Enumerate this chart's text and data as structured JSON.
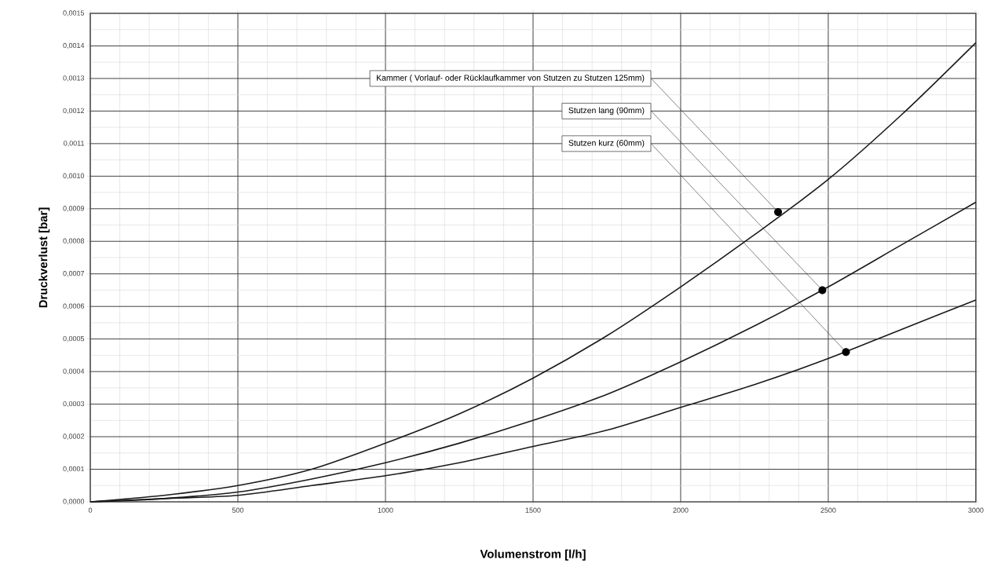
{
  "chart_data": {
    "type": "line",
    "xlabel": "Volumenstrom [l/h]",
    "ylabel": "Druckverlust [bar]",
    "x": [
      0,
      250,
      500,
      750,
      1000,
      1250,
      1500,
      1750,
      2000,
      2250,
      2500,
      2750,
      3000
    ],
    "series": [
      {
        "color": "#1a1a1a",
        "values": [
          0,
          2e-05,
          5e-05,
          0.0001,
          0.00018,
          0.00027,
          0.00038,
          0.00051,
          0.00066,
          0.00082,
          0.00099,
          0.00119,
          0.00141
        ]
      },
      {
        "color": "#1a1a1a",
        "values": [
          0,
          1e-05,
          3e-05,
          7e-05,
          0.00012,
          0.00018,
          0.00025,
          0.00033,
          0.00043,
          0.00054,
          0.00066,
          0.00079,
          0.00092
        ]
      },
      {
        "color": "#1a1a1a",
        "values": [
          0,
          1e-05,
          2e-05,
          5e-05,
          8e-05,
          0.00012,
          0.00017,
          0.00022,
          0.00029,
          0.00036,
          0.00044,
          0.00053,
          0.00062
        ]
      }
    ],
    "annotations": [
      {
        "text": "Kammer ( Vorlauf- oder Rücklaufkammer von Stutzen zu Stutzen 125mm)",
        "x": 2330,
        "y": 0.00089
      },
      {
        "text": "Stutzen lang (90mm)",
        "x": 2480,
        "y": 0.00065
      },
      {
        "text": "Stutzen kurz (60mm)",
        "x": 2560,
        "y": 0.00046
      }
    ],
    "xlim": [
      0,
      3000
    ],
    "ylim": [
      0,
      0.0015
    ],
    "xticks": [
      0,
      500,
      1000,
      1500,
      2000,
      2500,
      3000
    ],
    "yticks": [
      {
        "value": 0,
        "label": "0,0000"
      },
      {
        "value": 0.0001,
        "label": "0,0001"
      },
      {
        "value": 0.0002,
        "label": "0,0002"
      },
      {
        "value": 0.0003,
        "label": "0,0003"
      },
      {
        "value": 0.0004,
        "label": "0,0004"
      },
      {
        "value": 0.0005,
        "label": "0,0005"
      },
      {
        "value": 0.0006,
        "label": "0,0006"
      },
      {
        "value": 0.0007,
        "label": "0,0007"
      },
      {
        "value": 0.0008,
        "label": "0,0008"
      },
      {
        "value": 0.0009,
        "label": "0,0009"
      },
      {
        "value": 0.001,
        "label": "0,0010"
      },
      {
        "value": 0.0011,
        "label": "0,0011"
      },
      {
        "value": 0.0012,
        "label": "0,0012"
      },
      {
        "value": 0.0013,
        "label": "0,0013"
      },
      {
        "value": 0.0014,
        "label": "0,0014"
      },
      {
        "value": 0.0015,
        "label": "0,0015"
      }
    ],
    "grid": true,
    "marker": "none",
    "line_style": "solid"
  }
}
